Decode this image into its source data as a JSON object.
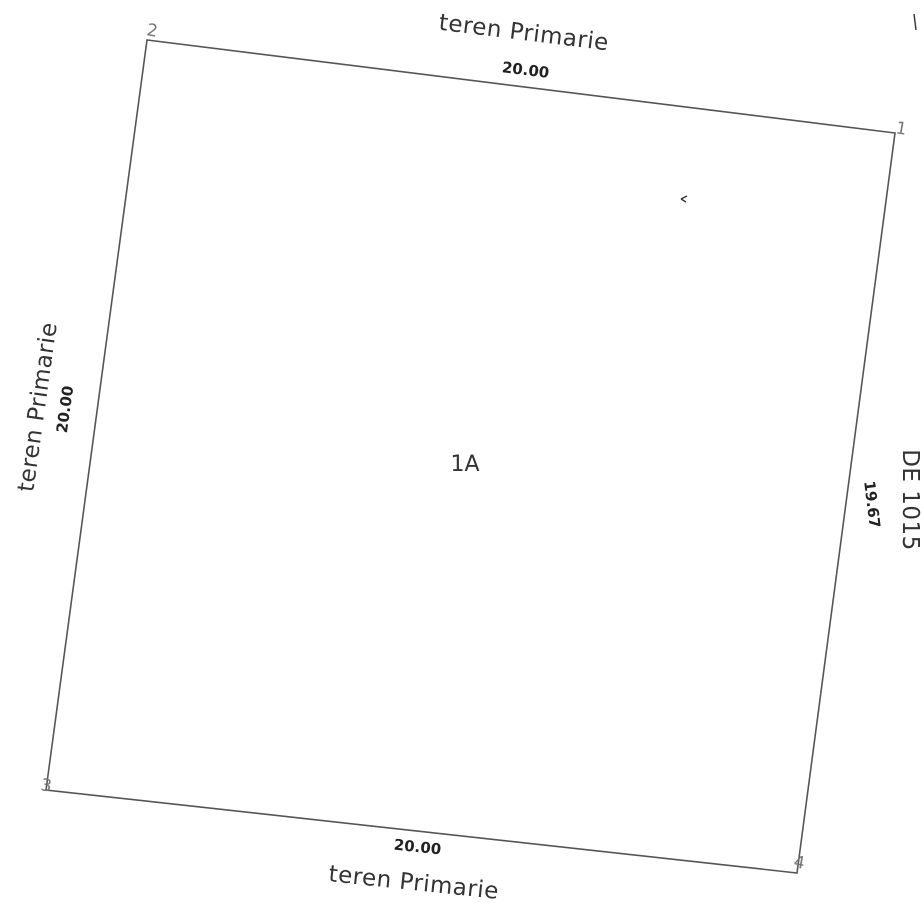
{
  "parcel": {
    "id": "1A"
  },
  "vertices": [
    "1",
    "2",
    "3",
    "4"
  ],
  "dimensions": {
    "top": "20.00",
    "left": "20.00",
    "right": "19.67",
    "bottom": "20.00"
  },
  "neighbors": {
    "top": "teren Primarie",
    "left": "teren Primarie",
    "right": "DE 1015",
    "bottom": "teren Primarie"
  }
}
